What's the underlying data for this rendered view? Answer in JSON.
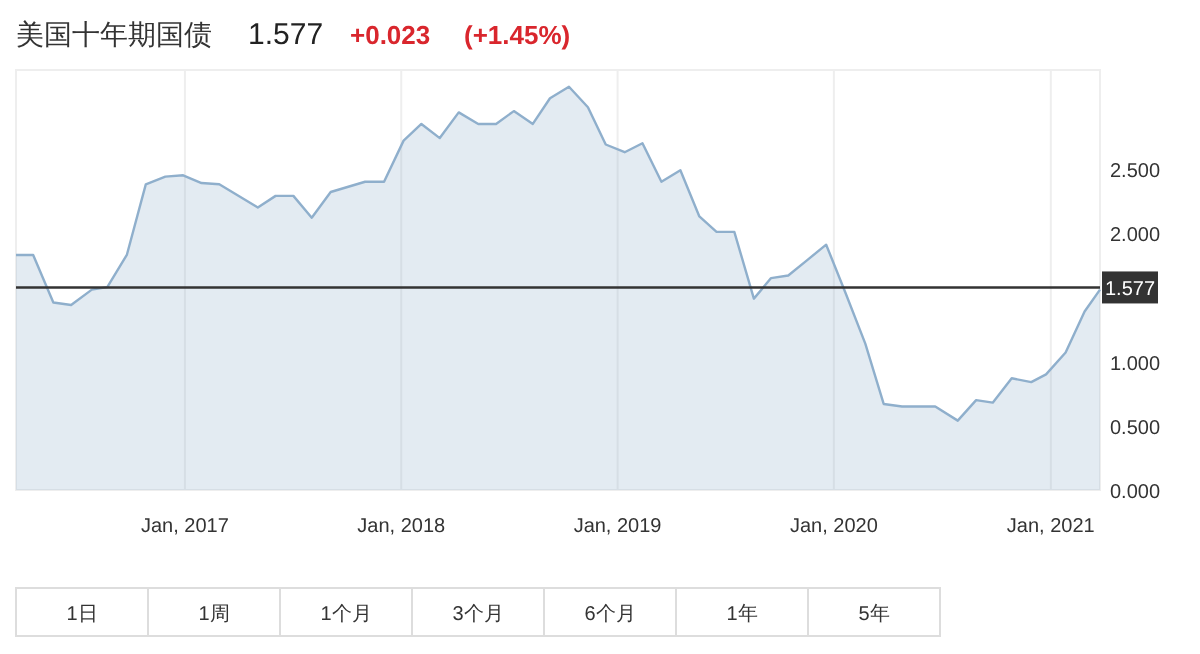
{
  "chart_data": {
    "type": "area",
    "title": "美国十年期国债",
    "annotations": [
      "1.577",
      "+0.023",
      "(+1.45%)",
      "1日",
      "1周",
      "1个月",
      "3个月",
      "6个月",
      "1年",
      "5年"
    ],
    "x": [
      "2016-03-22",
      "2016-04-20",
      "2016-05-24",
      "2016-06-23",
      "2016-07-28",
      "2016-08-23",
      "2016-09-25",
      "2016-10-27",
      "2016-11-29",
      "2016-12-29",
      "2017-01-29",
      "2017-02-28",
      "2017-05-04",
      "2017-06-03",
      "2017-07-03",
      "2017-08-03",
      "2017-09-04",
      "2017-11-01",
      "2017-12-03",
      "2018-01-05",
      "2018-02-04",
      "2018-03-07",
      "2018-04-08",
      "2018-05-11",
      "2018-06-10",
      "2018-07-10",
      "2018-08-11",
      "2018-09-09",
      "2018-10-11",
      "2018-11-12",
      "2018-12-12",
      "2019-01-13",
      "2019-02-12",
      "2019-03-16",
      "2019-04-17",
      "2019-05-19",
      "2019-06-17",
      "2019-07-17",
      "2019-08-19",
      "2019-09-17",
      "2019-10-16",
      "2019-11-17",
      "2019-12-19",
      "2020-01-21",
      "2020-02-23",
      "2020-03-25",
      "2020-04-25",
      "2020-05-25",
      "2020-06-20",
      "2020-07-28",
      "2020-08-28",
      "2020-09-25",
      "2020-10-27",
      "2020-11-29",
      "2020-12-24",
      "2021-01-26",
      "2021-02-27",
      "2021-03-25"
    ],
    "series": [
      {
        "color": "#8fafcc",
        "values": [
          1.83,
          1.83,
          1.46,
          1.44,
          1.56,
          1.58,
          1.83,
          2.38,
          2.44,
          2.45,
          2.39,
          2.38,
          2.2,
          2.29,
          2.29,
          2.12,
          2.32,
          2.4,
          2.4,
          2.72,
          2.85,
          2.74,
          2.94,
          2.85,
          2.85,
          2.95,
          2.85,
          3.05,
          3.14,
          2.98,
          2.69,
          2.63,
          2.7,
          2.4,
          2.49,
          2.13,
          2.01,
          2.01,
          1.49,
          1.65,
          1.67,
          1.79,
          1.91,
          1.53,
          1.14,
          0.67,
          0.65,
          0.65,
          0.65,
          0.54,
          0.7,
          0.68,
          0.87,
          0.84,
          0.9,
          1.07,
          1.39,
          1.56
        ]
      }
    ],
    "xlim": [
      "2016-03-22",
      "2021-03-25"
    ],
    "ylim": [
      0,
      3.27
    ],
    "xticks": [
      {
        "value": "2017-01-01",
        "label": "Jan, 2017"
      },
      {
        "value": "2018-01-01",
        "label": "Jan, 2018"
      },
      {
        "value": "2019-01-01",
        "label": "Jan, 2019"
      },
      {
        "value": "2020-01-01",
        "label": "Jan, 2020"
      },
      {
        "value": "2021-01-01",
        "label": "Jan, 2021"
      }
    ],
    "yticks": [
      {
        "value": 0,
        "label": "0.000"
      },
      {
        "value": 0.5,
        "label": "0.500"
      },
      {
        "value": 1,
        "label": "1.000"
      },
      {
        "value": 2,
        "label": "2.000"
      },
      {
        "value": 2.5,
        "label": "2.500"
      }
    ],
    "ref_lines": [
      {
        "axis": "y",
        "value": 1.577,
        "label": "1.577",
        "color": "#333333"
      }
    ],
    "grid": "x"
  }
}
